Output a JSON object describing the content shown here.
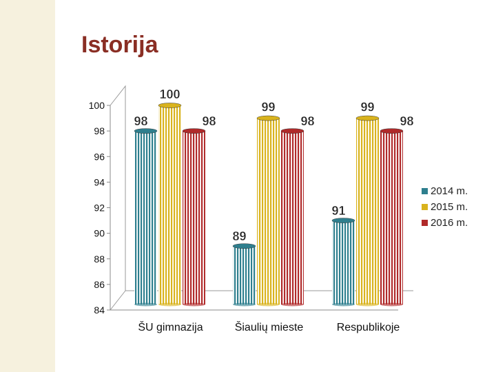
{
  "slide": {
    "title": "Istorija"
  },
  "chart_data": {
    "type": "bar",
    "categories": [
      "ŠU gimnazija",
      "Šiaulių mieste",
      "Respublikoje"
    ],
    "series": [
      {
        "name": "2014 m.",
        "color": "#2e7f8e",
        "values": [
          98,
          89,
          91
        ]
      },
      {
        "name": "2015 m.",
        "color": "#d9b31d",
        "values": [
          100,
          99,
          99
        ]
      },
      {
        "name": "2016 m.",
        "color": "#b02a2a",
        "values": [
          98,
          98,
          98
        ]
      }
    ],
    "y_tick_labels": [
      "84",
      "86",
      "88",
      "90",
      "92",
      "94",
      "96",
      "98",
      "100"
    ],
    "ylim": [
      84,
      100
    ],
    "legend_position": "right",
    "grid": false,
    "data_labels": true
  }
}
